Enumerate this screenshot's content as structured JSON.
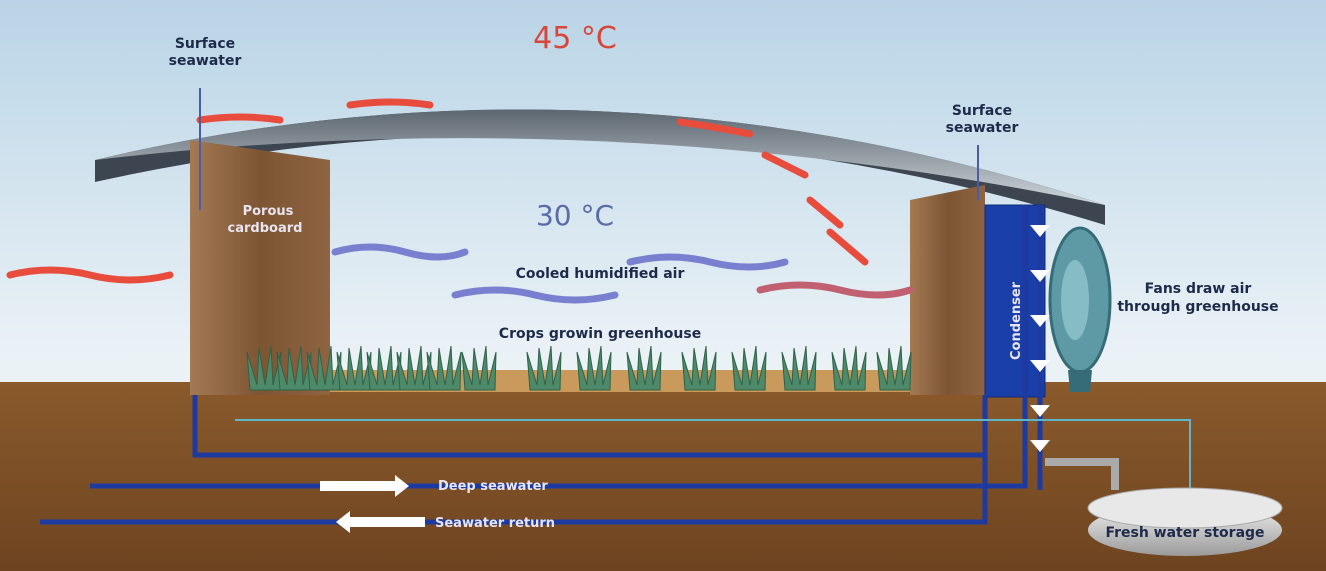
{
  "temperatures": {
    "outside": "45 °C",
    "inside": "30 °C"
  },
  "labels": {
    "surface_seawater_left": [
      "Surface",
      "seawater"
    ],
    "surface_seawater_right": [
      "Surface",
      "seawater"
    ],
    "porous_cardboard": [
      "Porous",
      "cardboard"
    ],
    "cooled_air": "Cooled humidified air",
    "crops": "Crops growin greenhouse",
    "condenser": "Condenser",
    "fans": [
      "Fans draw air",
      "through greenhouse"
    ],
    "deep_seawater": "Deep seawater",
    "seawater_return": "Seawater return",
    "fresh_water": "Fresh water storage"
  }
}
